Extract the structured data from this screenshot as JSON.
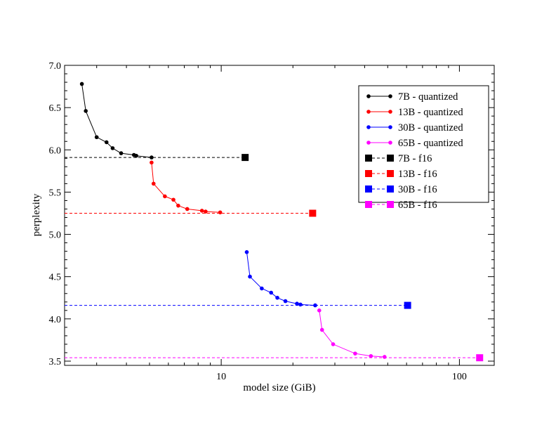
{
  "chart_data": {
    "type": "line",
    "title": "",
    "xlabel": "model size (GiB)",
    "ylabel": "perplexity",
    "xscale": "log",
    "xlim": [
      2.2,
      140
    ],
    "ylim": [
      3.45,
      7.0
    ],
    "x_tick_labels": [
      {
        "value": 10,
        "label": "10"
      },
      {
        "value": 100,
        "label": "100"
      }
    ],
    "y_tick_labels": [
      {
        "value": 3.5,
        "label": "3.5"
      },
      {
        "value": 4.0,
        "label": "4.0"
      },
      {
        "value": 4.5,
        "label": "4.5"
      },
      {
        "value": 5.0,
        "label": "5.0"
      },
      {
        "value": 5.5,
        "label": "5.5"
      },
      {
        "value": 6.0,
        "label": "6.0"
      },
      {
        "value": 6.5,
        "label": "6.5"
      },
      {
        "value": 7.0,
        "label": "7.0"
      }
    ],
    "grid": false,
    "legend_position": "top-right",
    "series": [
      {
        "name": "7B - quantized",
        "color": "#000000",
        "marker": "circle",
        "x": [
          2.6,
          2.7,
          3.0,
          3.3,
          3.5,
          3.8,
          4.3,
          4.4,
          5.1
        ],
        "y": [
          6.78,
          6.46,
          6.15,
          6.09,
          6.02,
          5.96,
          5.94,
          5.93,
          5.91
        ]
      },
      {
        "name": "13B - quantized",
        "color": "#ff0000",
        "marker": "circle",
        "x": [
          5.1,
          5.2,
          5.8,
          6.3,
          6.6,
          7.2,
          8.3,
          8.6,
          9.9
        ],
        "y": [
          5.85,
          5.6,
          5.45,
          5.41,
          5.34,
          5.3,
          5.28,
          5.27,
          5.26
        ]
      },
      {
        "name": "30B - quantized",
        "color": "#0000ff",
        "marker": "circle",
        "x": [
          12.8,
          13.2,
          14.8,
          16.2,
          17.2,
          18.6,
          20.8,
          21.5,
          24.8
        ],
        "y": [
          4.79,
          4.5,
          4.36,
          4.31,
          4.25,
          4.21,
          4.18,
          4.17,
          4.16
        ]
      },
      {
        "name": "65B - quantized",
        "color": "#ff00ff",
        "marker": "circle",
        "x": [
          25.8,
          26.5,
          29.5,
          36.5,
          42.5,
          48.5
        ],
        "y": [
          4.1,
          3.87,
          3.7,
          3.59,
          3.56,
          3.55
        ]
      },
      {
        "name": "7B - f16",
        "color": "#000000",
        "marker": "square",
        "dashed": true,
        "x": [
          2.2,
          12.6
        ],
        "y": [
          5.91,
          5.91
        ]
      },
      {
        "name": "13B - f16",
        "color": "#ff0000",
        "marker": "square",
        "dashed": true,
        "x": [
          2.2,
          24.2
        ],
        "y": [
          5.25,
          5.25
        ]
      },
      {
        "name": "30B - f16",
        "color": "#0000ff",
        "marker": "square",
        "dashed": true,
        "x": [
          2.2,
          60.6
        ],
        "y": [
          4.16,
          4.16
        ]
      },
      {
        "name": "65B - f16",
        "color": "#ff00ff",
        "marker": "square",
        "dashed": true,
        "x": [
          2.2,
          121.6
        ],
        "y": [
          3.54,
          3.54
        ]
      }
    ]
  }
}
